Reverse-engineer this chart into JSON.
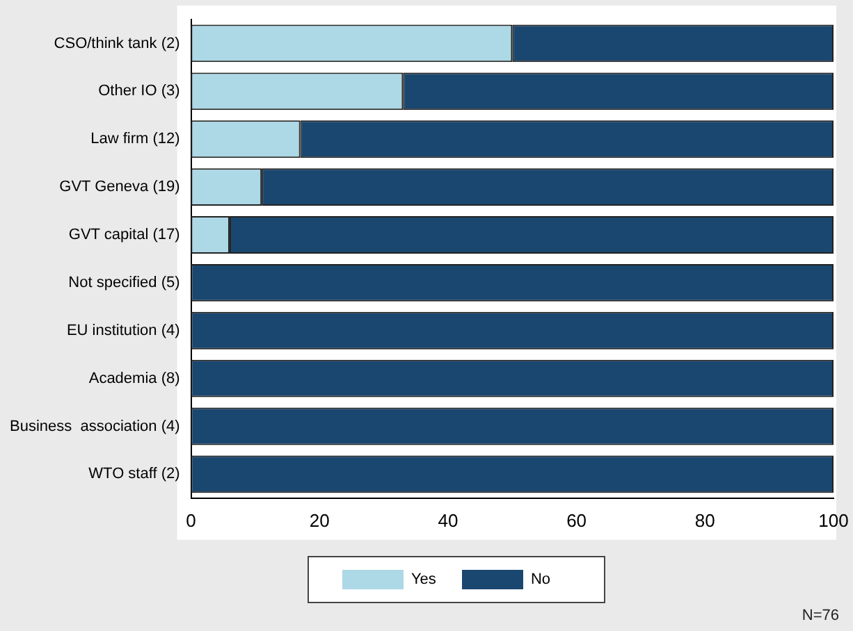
{
  "chart_data": {
    "type": "bar",
    "orientation": "horizontal",
    "stacked": true,
    "categories": [
      "CSO/think tank (2)",
      "Other IO (3)",
      "Law firm (12)",
      "GVT Geneva (19)",
      "GVT capital (17)",
      "Not specified (5)",
      "EU institution (4)",
      "Academia (8)",
      "Business  association (4)",
      "WTO staff (2)"
    ],
    "series": [
      {
        "name": "Yes",
        "color": "#add8e6",
        "values": [
          50,
          33,
          17,
          11,
          6,
          0,
          0,
          0,
          0,
          0
        ]
      },
      {
        "name": "No",
        "color": "#1a476f",
        "values": [
          50,
          67,
          83,
          89,
          94,
          100,
          100,
          100,
          100,
          100
        ]
      }
    ],
    "xlim": [
      0,
      100
    ],
    "xticks": [
      0,
      20,
      40,
      60,
      80,
      100
    ],
    "grid": false,
    "legend": "bottom",
    "annotations": [
      "N=76"
    ]
  }
}
